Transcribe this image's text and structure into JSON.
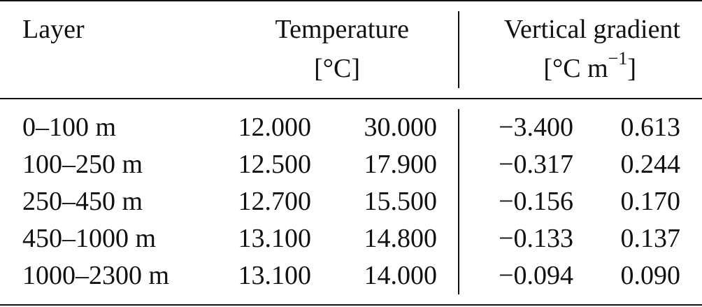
{
  "table": {
    "headers": {
      "layer": "Layer",
      "temperature": "Temperature",
      "temperature_unit": "[°C]",
      "gradient": "Vertical gradient",
      "gradient_unit_base": "[°C m",
      "gradient_unit_exp": "−1",
      "gradient_unit_close": "]"
    },
    "rows": [
      {
        "layer": "0–100 m",
        "t1": "12.000",
        "t2": "30.000",
        "g1": "−3.400",
        "g2": "0.613"
      },
      {
        "layer": "100–250 m",
        "t1": "12.500",
        "t2": "17.900",
        "g1": "−0.317",
        "g2": "0.244"
      },
      {
        "layer": "250–450 m",
        "t1": "12.700",
        "t2": "15.500",
        "g1": "−0.156",
        "g2": "0.170"
      },
      {
        "layer": "450–1000 m",
        "t1": "13.100",
        "t2": "14.800",
        "g1": "−0.133",
        "g2": "0.137"
      },
      {
        "layer": "1000–2300 m",
        "t1": "13.100",
        "t2": "14.000",
        "g1": "−0.094",
        "g2": "0.090"
      }
    ]
  }
}
